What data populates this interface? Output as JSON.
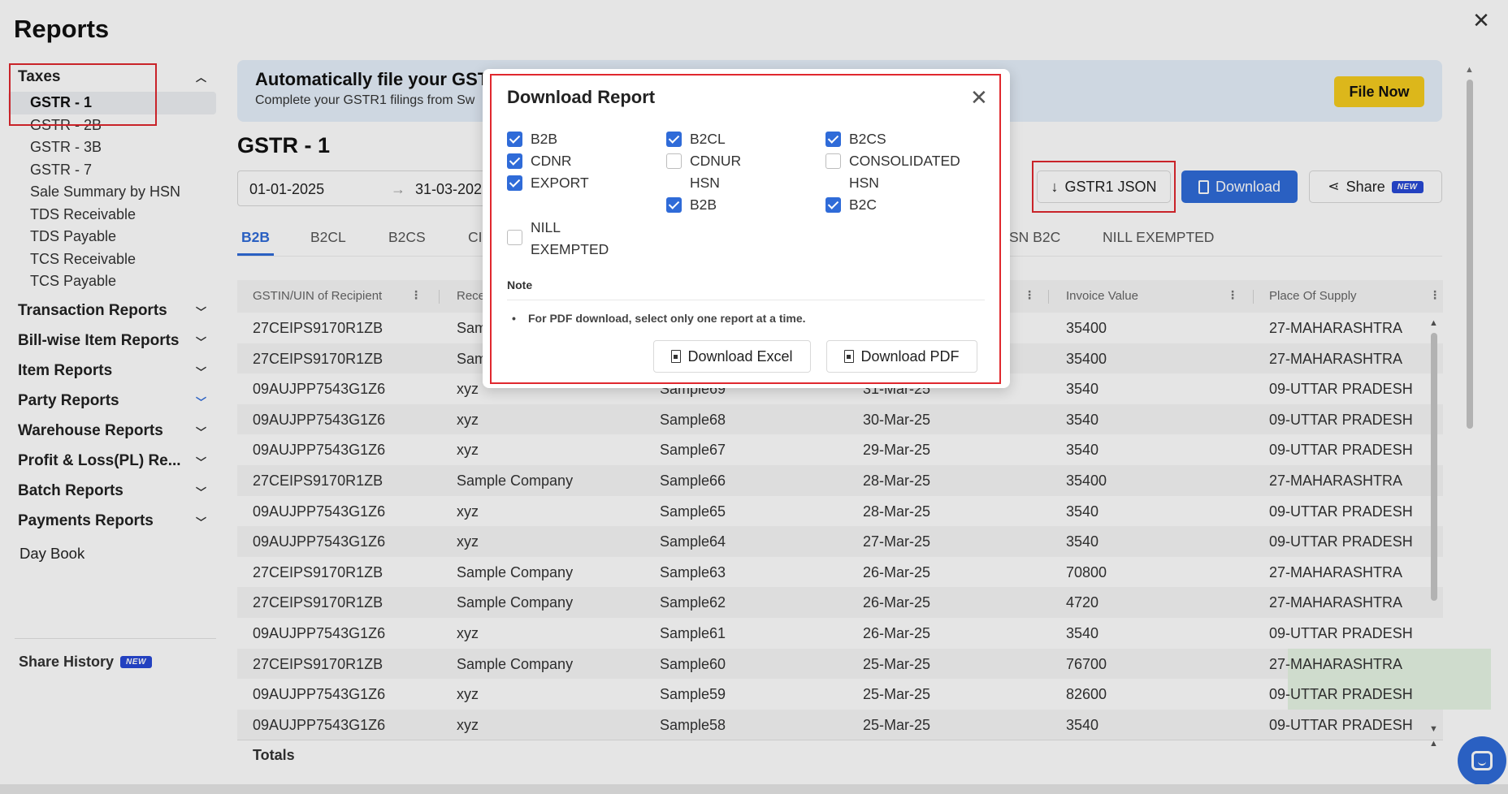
{
  "page": {
    "title": "Reports",
    "close_symbol": "✕"
  },
  "sidebar": {
    "taxes_label": "Taxes",
    "taxes_items": [
      "GSTR - 1",
      "GSTR - 2B",
      "GSTR - 3B",
      "GSTR - 7",
      "Sale Summary by HSN",
      "TDS Receivable",
      "TDS Payable",
      "TCS Receivable",
      "TCS Payable"
    ],
    "groups": [
      "Transaction Reports",
      "Bill-wise Item Reports",
      "Item Reports",
      "Party Reports",
      "Warehouse Reports",
      "Profit & Loss(PL) Re...",
      "Batch Reports",
      "Payments Reports"
    ],
    "day_book": "Day Book",
    "share_history": "Share History",
    "new_badge": "NEW"
  },
  "banner": {
    "title": "Automatically file your GST",
    "subtitle": "Complete your GSTR1 filings from Sw",
    "file_now": "File Now"
  },
  "report": {
    "title": "GSTR - 1",
    "date_from": "01-01-2025",
    "date_arrow": "→",
    "date_to": "31-03-202",
    "gstr1_json": "GSTR1 JSON",
    "download": "Download",
    "share": "Share",
    "new_badge": "NEW"
  },
  "tabs": [
    "B2B",
    "B2CL",
    "B2CS",
    "CI",
    "SN B2C",
    "NILL EXEMPTED"
  ],
  "table": {
    "headers": [
      "GSTIN/UIN of Recipient",
      "Rece",
      "Invoice Value",
      "Place Of Supply"
    ],
    "rows": [
      [
        "27CEIPS9170R1ZB",
        "Sam",
        "",
        "",
        "35400",
        "27-MAHARASHTRA"
      ],
      [
        "27CEIPS9170R1ZB",
        "Sam",
        "",
        "",
        "35400",
        "27-MAHARASHTRA"
      ],
      [
        "09AUJPP7543G1Z6",
        "xyz",
        "Sample69",
        "31-Mar-25",
        "3540",
        "09-UTTAR PRADESH"
      ],
      [
        "09AUJPP7543G1Z6",
        "xyz",
        "Sample68",
        "30-Mar-25",
        "3540",
        "09-UTTAR PRADESH"
      ],
      [
        "09AUJPP7543G1Z6",
        "xyz",
        "Sample67",
        "29-Mar-25",
        "3540",
        "09-UTTAR PRADESH"
      ],
      [
        "27CEIPS9170R1ZB",
        "Sample Company",
        "Sample66",
        "28-Mar-25",
        "35400",
        "27-MAHARASHTRA"
      ],
      [
        "09AUJPP7543G1Z6",
        "xyz",
        "Sample65",
        "28-Mar-25",
        "3540",
        "09-UTTAR PRADESH"
      ],
      [
        "09AUJPP7543G1Z6",
        "xyz",
        "Sample64",
        "27-Mar-25",
        "3540",
        "09-UTTAR PRADESH"
      ],
      [
        "27CEIPS9170R1ZB",
        "Sample Company",
        "Sample63",
        "26-Mar-25",
        "70800",
        "27-MAHARASHTRA"
      ],
      [
        "27CEIPS9170R1ZB",
        "Sample Company",
        "Sample62",
        "26-Mar-25",
        "4720",
        "27-MAHARASHTRA"
      ],
      [
        "09AUJPP7543G1Z6",
        "xyz",
        "Sample61",
        "26-Mar-25",
        "3540",
        "09-UTTAR PRADESH"
      ],
      [
        "27CEIPS9170R1ZB",
        "Sample Company",
        "Sample60",
        "25-Mar-25",
        "76700",
        "27-MAHARASHTRA"
      ],
      [
        "09AUJPP7543G1Z6",
        "xyz",
        "Sample59",
        "25-Mar-25",
        "82600",
        "09-UTTAR PRADESH"
      ],
      [
        "09AUJPP7543G1Z6",
        "xyz",
        "Sample58",
        "25-Mar-25",
        "3540",
        "09-UTTAR PRADESH"
      ]
    ],
    "totals": "Totals"
  },
  "modal": {
    "title": "Download Report",
    "options": [
      {
        "label": "B2B",
        "checked": true
      },
      {
        "label": "B2CL",
        "checked": true
      },
      {
        "label": "B2CS",
        "checked": true
      },
      {
        "label": "CDNR",
        "checked": true
      },
      {
        "label": "CDNUR",
        "checked": false
      },
      {
        "label": "CONSOLIDATED",
        "checked": false
      },
      {
        "label": "EXPORT",
        "checked": true
      },
      {
        "label": "HSN B2B",
        "checked": true
      },
      {
        "label": "HSN B2C",
        "checked": true
      },
      {
        "label": "NILL EXEMPTED",
        "checked": false
      }
    ],
    "note_label": "Note",
    "note_text": "For PDF download, select only one report at a time.",
    "download_excel": "Download Excel",
    "download_pdf": "Download PDF"
  },
  "colors": {
    "accent": "#2f6bd8",
    "file_now": "#f5cc1f",
    "annotation": "#e0282e",
    "badge": "#2849d6"
  }
}
